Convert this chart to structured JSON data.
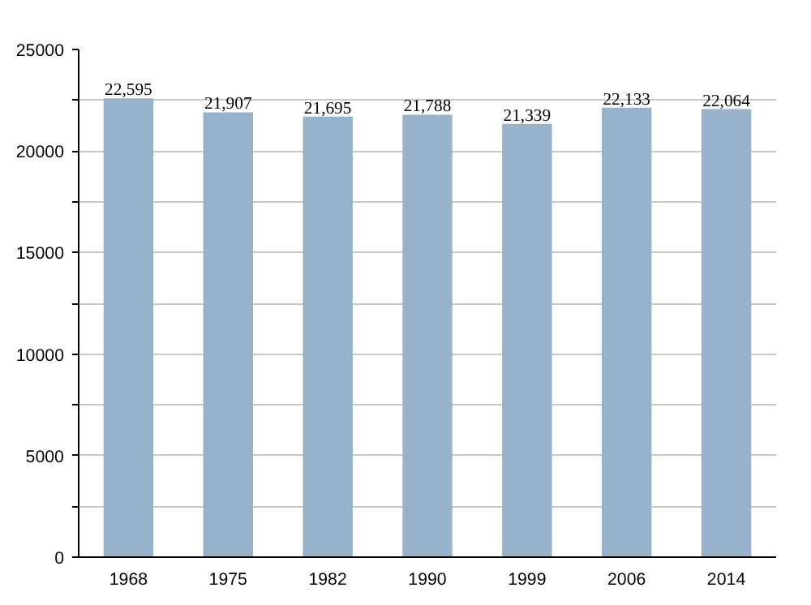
{
  "chart_data": {
    "type": "bar",
    "categories": [
      "1968",
      "1975",
      "1982",
      "1990",
      "1999",
      "2006",
      "2014"
    ],
    "values": [
      22595,
      21907,
      21695,
      21788,
      21339,
      22133,
      22064
    ],
    "color": "#98b2cb",
    "value_labels": [
      "22,595",
      "21,907",
      "21,695",
      "21,788",
      "21,339",
      "22,133",
      "22,064"
    ],
    "ylim": [
      0,
      25000
    ],
    "yticks": [
      0,
      {
        "value": 2500,
        "label": null
      },
      5000,
      {
        "value": 7500,
        "label": null
      },
      10000,
      {
        "value": 12500,
        "label": null
      },
      15000,
      {
        "value": 17500,
        "label": null
      },
      20000,
      {
        "value": 22500,
        "label": null
      },
      25000
    ],
    "grid": "y"
  }
}
